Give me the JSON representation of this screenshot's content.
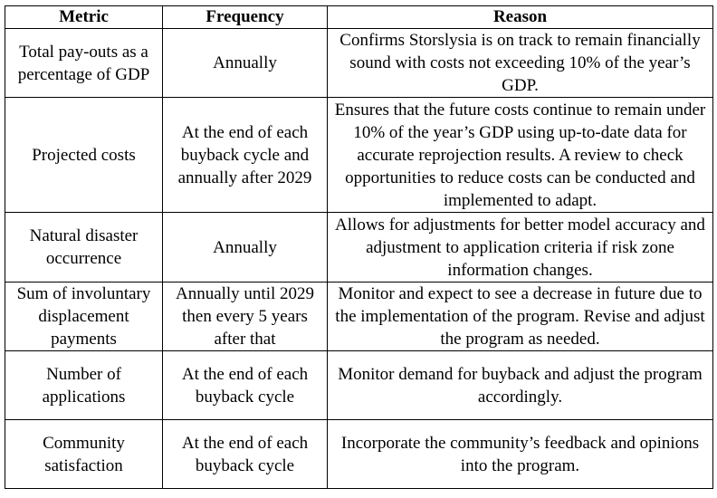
{
  "table": {
    "headers": [
      "Metric",
      "Frequency",
      "Reason"
    ],
    "rows": [
      {
        "metric": "Total pay-outs as a percentage of GDP",
        "frequency": "Annually",
        "reason": "Confirms Storslysia is on track to remain financially sound with costs not exceeding 10% of the year’s GDP."
      },
      {
        "metric": "Projected costs",
        "frequency": "At the end of each buyback cycle and annually after 2029",
        "reason": "Ensures that the future costs continue to remain under 10% of the year’s GDP using up-to-date data for accurate reprojection results. A review to check opportunities to reduce costs can be conducted and implemented to adapt."
      },
      {
        "metric": "Natural disaster occurrence",
        "frequency": "Annually",
        "reason": "Allows for adjustments for better model accuracy and adjustment to application criteria if risk zone information changes."
      },
      {
        "metric": "Sum of involuntary displacement payments",
        "frequency": "Annually until 2029 then every 5 years after that",
        "reason": "Monitor and expect to see a decrease in future due to the implementation of the program. Revise and adjust the program as needed."
      },
      {
        "metric": "Number of applications",
        "frequency": "At the end of each buyback cycle",
        "reason": "Monitor demand for buyback and adjust the program accordingly."
      },
      {
        "metric": "Community satisfaction",
        "frequency": "At the end of each buyback cycle",
        "reason": "Incorporate the community’s feedback and opinions into the program."
      }
    ]
  }
}
